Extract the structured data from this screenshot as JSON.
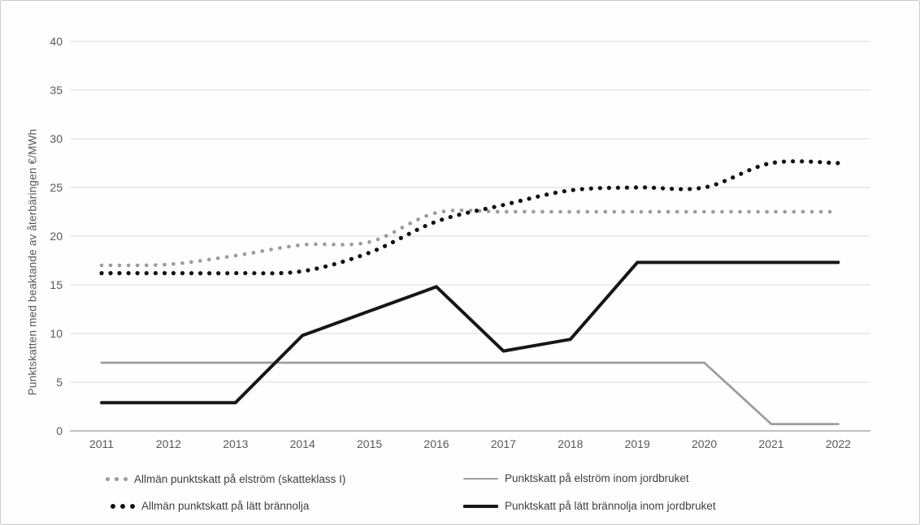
{
  "chart_data": {
    "type": "line",
    "title": "",
    "ylabel": "Punktskatten med beaktande av återbäringen €/MWh",
    "xlabel": "",
    "x": [
      "2011",
      "2012",
      "2013",
      "2014",
      "2015",
      "2016",
      "2017",
      "2018",
      "2019",
      "2020",
      "2021",
      "2022"
    ],
    "ylim": [
      0,
      40
    ],
    "yticks": [
      0,
      5,
      10,
      15,
      20,
      25,
      30,
      35,
      40
    ],
    "grid": true,
    "legend_position": "bottom",
    "colors": {
      "gray_series": "#9b9b9b",
      "black_series": "#141414",
      "gridline": "#d9d9d9",
      "axis_line": "#ababab",
      "tick_text": "#595959",
      "legend_text": "#3f3f3f"
    },
    "series": [
      {
        "id": "allman-punktskatt-elstrom",
        "name": "Allmän punktskatt på elström (skatteklass I)",
        "line_style": "dotted",
        "color": "#9b9b9b",
        "values": [
          17.0,
          17.1,
          18.0,
          19.1,
          19.4,
          22.4,
          22.5,
          22.5,
          22.5,
          22.5,
          22.5,
          22.5
        ]
      },
      {
        "id": "allman-punktskatt-latt-brannolja",
        "name": "Allmän punktskatt på lätt brännolja",
        "line_style": "dotted",
        "color": "#121212",
        "values": [
          16.2,
          16.2,
          16.2,
          16.4,
          18.3,
          21.5,
          23.2,
          24.7,
          25.0,
          25.0,
          27.5,
          27.5
        ]
      },
      {
        "id": "punktskatt-elstrom-jordbruket",
        "name": "Punktskatt på elström inom jordbruket",
        "line_style": "solid",
        "color": "#9e9e9e",
        "values": [
          7.0,
          7.0,
          7.0,
          7.0,
          7.0,
          7.0,
          7.0,
          7.0,
          7.0,
          7.0,
          0.7,
          0.7
        ]
      },
      {
        "id": "punktskatt-latt-brannolja-jordbruket",
        "name": "Punktskatt på lätt brännolja inom jordbruket",
        "line_style": "solid",
        "color": "#161616",
        "values": [
          2.9,
          2.9,
          2.9,
          9.8,
          12.3,
          14.8,
          8.2,
          9.4,
          17.3,
          17.3,
          17.3,
          17.3
        ]
      }
    ]
  }
}
